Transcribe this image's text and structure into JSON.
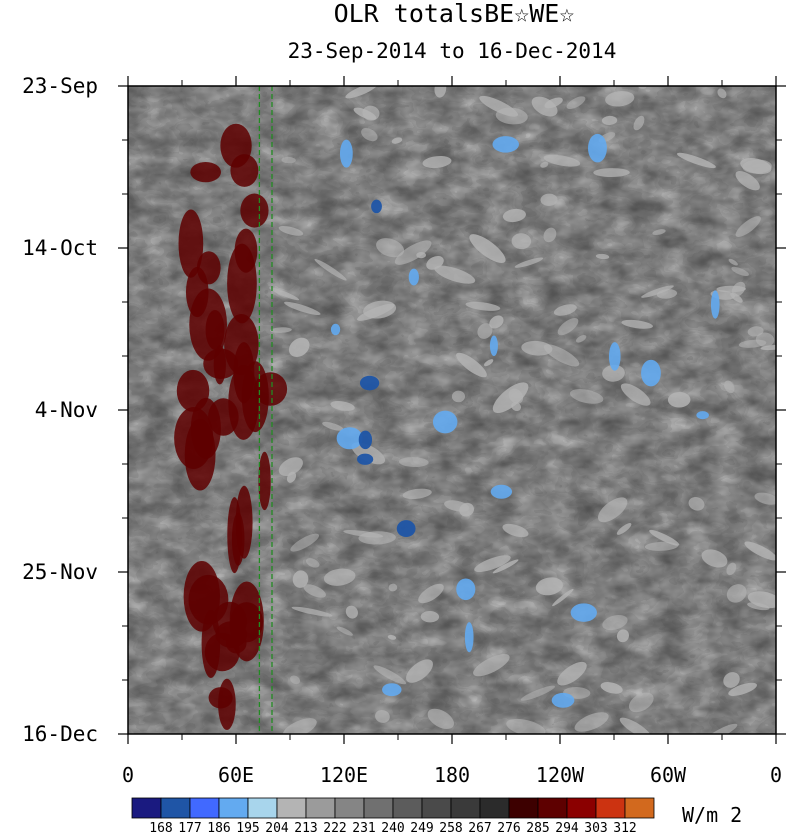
{
  "chart_data": {
    "type": "heatmap",
    "title": "OLR totalsBE☆WE☆",
    "subtitle": "23-Sep-2014 to 16-Dec-2014",
    "x_ticks": [
      {
        "label": "0",
        "lon": 0
      },
      {
        "label": "60E",
        "lon": 60
      },
      {
        "label": "120E",
        "lon": 120
      },
      {
        "label": "180",
        "lon": 180
      },
      {
        "label": "120W",
        "lon": 240
      },
      {
        "label": "60W",
        "lon": 300
      },
      {
        "label": "0",
        "lon": 360
      }
    ],
    "x_range": [
      0,
      360
    ],
    "y_ticks": [
      {
        "label": "23-Sep",
        "date": "2014-09-23"
      },
      {
        "label": "14-Oct",
        "date": "2014-10-14"
      },
      {
        "label": "4-Nov",
        "date": "2014-11-04"
      },
      {
        "label": "25-Nov",
        "date": "2014-11-25"
      },
      {
        "label": "16-Dec",
        "date": "2014-12-16"
      }
    ],
    "y_range": [
      "2014-09-23",
      "2014-12-16"
    ],
    "colorbar": {
      "unit": "W/m 2",
      "levels": [
        "168",
        "177",
        "186",
        "195",
        "204",
        "213",
        "222",
        "231",
        "240",
        "249",
        "258",
        "267",
        "276",
        "285",
        "294",
        "303",
        "312"
      ],
      "colors": [
        "#1a1a80",
        "#1f55a6",
        "#4169ff",
        "#63aaf0",
        "#a8d5ec",
        "#b4b4b4",
        "#9b9b9b",
        "#858585",
        "#707070",
        "#5c5c5c",
        "#4a4a4a",
        "#3a3a3a",
        "#2b2b2b",
        "#3d0000",
        "#5e0000",
        "#8b0000",
        "#cc3311",
        "#d2691e"
      ]
    },
    "reference_lines": [
      {
        "style": "dashed",
        "color": "#228b22",
        "lon": 73
      },
      {
        "style": "dashed",
        "color": "#228b22",
        "lon": 80
      }
    ]
  }
}
